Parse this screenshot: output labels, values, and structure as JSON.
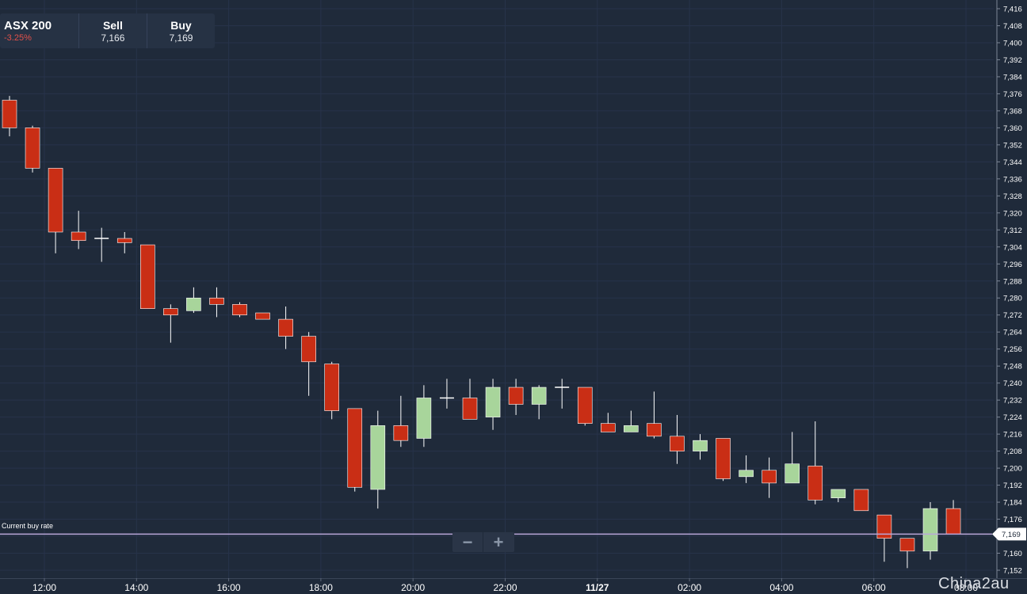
{
  "instrument": {
    "name": "ASX 200",
    "change": "-3.25%",
    "sell_label": "Sell",
    "sell_value": "7,166",
    "buy_label": "Buy",
    "buy_value": "7,169"
  },
  "current_rate": {
    "label": "Current buy rate",
    "value": 7169,
    "value_label": "7,169"
  },
  "zoom": {
    "minus": "−",
    "plus": "+"
  },
  "watermark": "China2au",
  "colors": {
    "background": "#1f2a3a",
    "bull": "#a8d59b",
    "bear": "#c92e15",
    "wick": "#ffffff",
    "rate_line": "#b9a6d9",
    "axis_text": "#ffffff"
  },
  "chart_data": {
    "type": "candlestick",
    "ylim": [
      7148,
      7418
    ],
    "y_ticks": [
      "7,416",
      "7,408",
      "7,400",
      "7,392",
      "7,384",
      "7,376",
      "7,368",
      "7,360",
      "7,352",
      "7,344",
      "7,336",
      "7,328",
      "7,320",
      "7,312",
      "7,304",
      "7,296",
      "7,288",
      "7,280",
      "7,272",
      "7,264",
      "7,256",
      "7,248",
      "7,240",
      "7,232",
      "7,224",
      "7,216",
      "7,208",
      "7,200",
      "7,192",
      "7,184",
      "7,176",
      "7,168",
      "7,160",
      "7,152"
    ],
    "x_ticks": [
      "12:00",
      "14:00",
      "16:00",
      "18:00",
      "20:00",
      "22:00",
      "11/27",
      "02:00",
      "04:00",
      "06:00",
      "08:00"
    ],
    "interval": "30min",
    "candles": [
      {
        "o": 7373,
        "h": 7375,
        "l": 7356,
        "c": 7360
      },
      {
        "o": 7360,
        "h": 7361,
        "l": 7339,
        "c": 7341
      },
      {
        "o": 7341,
        "h": 7341,
        "l": 7301,
        "c": 7311
      },
      {
        "o": 7311,
        "h": 7321,
        "l": 7303,
        "c": 7307
      },
      {
        "o": 7308,
        "h": 7313,
        "l": 7297,
        "c": 7308
      },
      {
        "o": 7308,
        "h": 7311,
        "l": 7301,
        "c": 7306
      },
      {
        "o": 7305,
        "h": 7305,
        "l": 7275,
        "c": 7275
      },
      {
        "o": 7275,
        "h": 7277,
        "l": 7259,
        "c": 7272
      },
      {
        "o": 7274,
        "h": 7285,
        "l": 7273,
        "c": 7280
      },
      {
        "o": 7280,
        "h": 7285,
        "l": 7271,
        "c": 7277
      },
      {
        "o": 7277,
        "h": 7278,
        "l": 7271,
        "c": 7272
      },
      {
        "o": 7273,
        "h": 7273,
        "l": 7270,
        "c": 7270
      },
      {
        "o": 7270,
        "h": 7276,
        "l": 7256,
        "c": 7262
      },
      {
        "o": 7262,
        "h": 7264,
        "l": 7234,
        "c": 7250
      },
      {
        "o": 7249,
        "h": 7250,
        "l": 7223,
        "c": 7227
      },
      {
        "o": 7228,
        "h": 7228,
        "l": 7189,
        "c": 7191
      },
      {
        "o": 7190,
        "h": 7227,
        "l": 7181,
        "c": 7220
      },
      {
        "o": 7220,
        "h": 7234,
        "l": 7210,
        "c": 7213
      },
      {
        "o": 7214,
        "h": 7239,
        "l": 7210,
        "c": 7233
      },
      {
        "o": 7233,
        "h": 7242,
        "l": 7228,
        "c": 7233
      },
      {
        "o": 7233,
        "h": 7242,
        "l": 7223,
        "c": 7223
      },
      {
        "o": 7224,
        "h": 7242,
        "l": 7218,
        "c": 7238
      },
      {
        "o": 7238,
        "h": 7242,
        "l": 7225,
        "c": 7230
      },
      {
        "o": 7230,
        "h": 7239,
        "l": 7223,
        "c": 7238
      },
      {
        "o": 7238,
        "h": 7242,
        "l": 7228,
        "c": 7238
      },
      {
        "o": 7238,
        "h": 7238,
        "l": 7220,
        "c": 7221
      },
      {
        "o": 7221,
        "h": 7226,
        "l": 7217,
        "c": 7217
      },
      {
        "o": 7217,
        "h": 7227,
        "l": 7217,
        "c": 7220
      },
      {
        "o": 7221,
        "h": 7236,
        "l": 7214,
        "c": 7215
      },
      {
        "o": 7215,
        "h": 7225,
        "l": 7202,
        "c": 7208
      },
      {
        "o": 7208,
        "h": 7216,
        "l": 7204,
        "c": 7213
      },
      {
        "o": 7214,
        "h": 7214,
        "l": 7194,
        "c": 7195
      },
      {
        "o": 7196,
        "h": 7206,
        "l": 7193,
        "c": 7199
      },
      {
        "o": 7199,
        "h": 7205,
        "l": 7186,
        "c": 7193
      },
      {
        "o": 7193,
        "h": 7217,
        "l": 7193,
        "c": 7202
      },
      {
        "o": 7201,
        "h": 7222,
        "l": 7183,
        "c": 7185
      },
      {
        "o": 7186,
        "h": 7190,
        "l": 7184,
        "c": 7190
      },
      {
        "o": 7190,
        "h": 7190,
        "l": 7180,
        "c": 7180
      },
      {
        "o": 7178,
        "h": 7178,
        "l": 7156,
        "c": 7167
      },
      {
        "o": 7167,
        "h": 7167,
        "l": 7153,
        "c": 7161
      },
      {
        "o": 7161,
        "h": 7184,
        "l": 7157,
        "c": 7181
      },
      {
        "o": 7181,
        "h": 7185,
        "l": 7169,
        "c": 7169
      }
    ]
  }
}
